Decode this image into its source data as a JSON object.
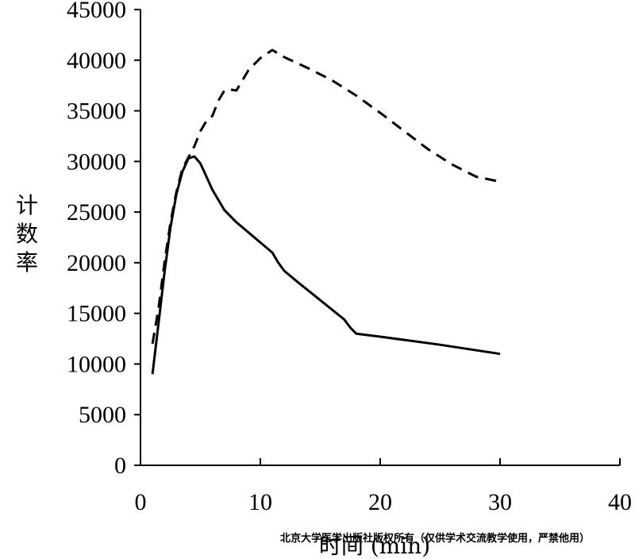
{
  "chart_data": {
    "type": "line",
    "title": "",
    "xlabel": "时间 (min)",
    "ylabel": "计数率",
    "xlim": [
      0,
      40
    ],
    "ylim": [
      0,
      45000
    ],
    "x_ticks": [
      0,
      10,
      20,
      30,
      40
    ],
    "y_ticks": [
      0,
      5000,
      10000,
      15000,
      20000,
      25000,
      30000,
      35000,
      40000,
      45000
    ],
    "grid": false,
    "legend": "none",
    "series": [
      {
        "style": "solid",
        "color": "#000000",
        "points": [
          [
            1.0,
            9000
          ],
          [
            1.5,
            14000
          ],
          [
            2.0,
            19000
          ],
          [
            2.5,
            23500
          ],
          [
            3.0,
            26800
          ],
          [
            3.5,
            29000
          ],
          [
            4.0,
            30300
          ],
          [
            4.5,
            30500
          ],
          [
            5.0,
            29800
          ],
          [
            5.5,
            28500
          ],
          [
            6.0,
            27200
          ],
          [
            7.0,
            25200
          ],
          [
            8.0,
            24000
          ],
          [
            9.0,
            23000
          ],
          [
            10.0,
            22000
          ],
          [
            11.0,
            21000
          ],
          [
            11.5,
            20000
          ],
          [
            12.0,
            19200
          ],
          [
            13.0,
            18200
          ],
          [
            15.0,
            16300
          ],
          [
            17.0,
            14400
          ],
          [
            17.5,
            13600
          ],
          [
            18.0,
            13000
          ],
          [
            20.0,
            12700
          ],
          [
            25.0,
            11900
          ],
          [
            30.0,
            11000
          ]
        ]
      },
      {
        "style": "dashed",
        "color": "#000000",
        "points": [
          [
            1.0,
            12000
          ],
          [
            1.5,
            15500
          ],
          [
            2.0,
            20000
          ],
          [
            2.5,
            24000
          ],
          [
            3.0,
            27000
          ],
          [
            3.5,
            29300
          ],
          [
            4.0,
            30400
          ],
          [
            4.5,
            31500
          ],
          [
            5.0,
            33000
          ],
          [
            5.5,
            34000
          ],
          [
            6.0,
            34500
          ],
          [
            6.5,
            36000
          ],
          [
            7.0,
            37000
          ],
          [
            7.5,
            37100
          ],
          [
            8.0,
            37000
          ],
          [
            8.5,
            38000
          ],
          [
            9.0,
            39000
          ],
          [
            10.0,
            40200
          ],
          [
            11.0,
            41000
          ],
          [
            12.0,
            40300
          ],
          [
            14.0,
            39200
          ],
          [
            16.0,
            38000
          ],
          [
            18.0,
            36500
          ],
          [
            20.0,
            34800
          ],
          [
            22.0,
            33000
          ],
          [
            24.0,
            31200
          ],
          [
            26.0,
            29700
          ],
          [
            28.0,
            28500
          ],
          [
            30.0,
            28000
          ]
        ]
      }
    ]
  },
  "watermark": "北京大学医学出版社版权所有（仅供学术交流教学使用，严禁他用）"
}
